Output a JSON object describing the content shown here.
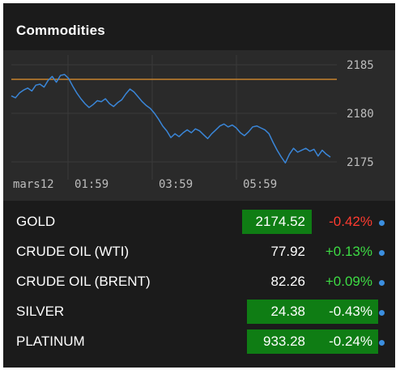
{
  "widget": {
    "title": "Commodities"
  },
  "chart": {
    "reference_value": 2183.5,
    "x_tick_labels": [
      "mars12",
      "01:59",
      "03:59",
      "05:59"
    ],
    "y_tick_labels": [
      "2185",
      "2180",
      "2175"
    ],
    "colors": {
      "line": "#3a86d8",
      "reference": "#c8822c",
      "background": "#2a2a2a",
      "grid": "#3a3a3a",
      "tick_text": "#bdbdbd"
    }
  },
  "chart_data": {
    "type": "line",
    "title": "",
    "x_tick_labels": [
      "mars12",
      "01:59",
      "03:59",
      "05:59"
    ],
    "ylim": [
      2174,
      2186
    ],
    "y_ticks": [
      2185,
      2180,
      2175
    ],
    "grid": true,
    "series": [
      {
        "values": [
          2181.8,
          2181.6,
          2182.1,
          2182.4,
          2182.6,
          2182.3,
          2182.9,
          2183.0,
          2182.7,
          2183.4,
          2183.8,
          2183.2,
          2183.9,
          2184.0,
          2183.6,
          2182.8,
          2182.1,
          2181.5,
          2181.0,
          2180.6,
          2180.9,
          2181.3,
          2181.2,
          2181.5,
          2181.0,
          2180.7,
          2181.1,
          2181.4,
          2182.0,
          2182.5,
          2182.2,
          2181.7,
          2181.2,
          2180.8,
          2180.5,
          2180.0,
          2179.4,
          2178.7,
          2178.2,
          2177.5,
          2177.9,
          2177.6,
          2178.0,
          2178.3,
          2178.0,
          2178.4,
          2178.2,
          2177.8,
          2177.4,
          2177.9,
          2178.3,
          2178.7,
          2178.9,
          2178.6,
          2178.8,
          2178.5,
          2178.0,
          2177.7,
          2178.1,
          2178.6,
          2178.7,
          2178.5,
          2178.3,
          2177.9,
          2177.0,
          2176.2,
          2175.5,
          2174.9,
          2175.8,
          2176.4,
          2176.0,
          2176.2,
          2176.4,
          2176.1,
          2176.3,
          2175.6,
          2176.2,
          2175.8,
          2175.5
        ]
      }
    ],
    "reference_line": 2183.5
  },
  "rows": [
    {
      "name": "GOLD",
      "price": "2174.52",
      "change": "-0.42%",
      "change_dir": "neg",
      "price_highlight": true,
      "change_highlight": false
    },
    {
      "name": "CRUDE OIL (WTI)",
      "price": "77.92",
      "change": "+0.13%",
      "change_dir": "pos",
      "price_highlight": false,
      "change_highlight": false
    },
    {
      "name": "CRUDE OIL (BRENT)",
      "price": "82.26",
      "change": "+0.09%",
      "change_dir": "pos",
      "price_highlight": false,
      "change_highlight": false
    },
    {
      "name": "SILVER",
      "price": "24.38",
      "change": "-0.43%",
      "change_dir": "neutral",
      "price_highlight": true,
      "change_highlight": true
    },
    {
      "name": "PLATINUM",
      "price": "933.28",
      "change": "-0.24%",
      "change_dir": "neutral",
      "price_highlight": true,
      "change_highlight": true
    }
  ],
  "icons": {
    "row_indicator": "blue-dot-icon"
  },
  "highlight_color": "#0f7d14"
}
